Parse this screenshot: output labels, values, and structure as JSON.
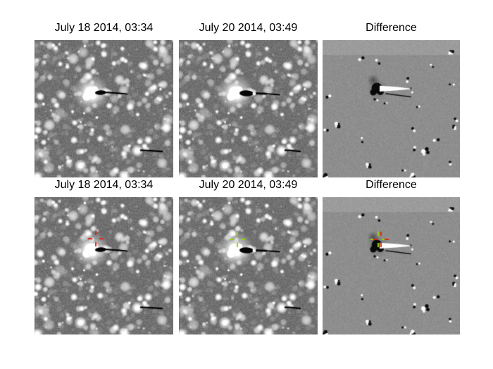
{
  "figure": {
    "type": "astronomy-two-epoch-comparison",
    "background": "#ffffff",
    "columns": [
      "epoch1",
      "epoch2",
      "difference"
    ],
    "rows": [
      {
        "name": "unannotated",
        "panels": [
          {
            "title": "July 18 2014, 03:34",
            "type": "epoch1",
            "markers": []
          },
          {
            "title": "July 20 2014, 03:49",
            "type": "epoch2",
            "markers": []
          },
          {
            "title": "Difference",
            "type": "difference",
            "markers": []
          }
        ]
      },
      {
        "name": "annotated",
        "panels": [
          {
            "title": "July 18 2014, 03:34",
            "type": "epoch1",
            "markers": [
              {
                "name": "target-position-epoch1",
                "color": "#e02518",
                "x": 87,
                "y": 59
              }
            ]
          },
          {
            "title": "July 20 2014, 03:49",
            "type": "epoch2",
            "markers": [
              {
                "name": "target-position-epoch2",
                "color": "#95d40c",
                "x": 83,
                "y": 60
              }
            ]
          },
          {
            "title": "Difference",
            "type": "difference",
            "markers": [
              {
                "name": "target-position-epoch2",
                "color": "#95d40c",
                "x": 79,
                "y": 60
              },
              {
                "name": "target-position-epoch1",
                "color": "#e02518",
                "x": 83,
                "y": 60
              }
            ]
          }
        ]
      }
    ],
    "image_colors": {
      "starfield_background": "#707070",
      "difference_background": "#8e8e8e",
      "difference_top_band": "#9b9b9b",
      "marker_red": "#e02518",
      "marker_green": "#95d40c"
    }
  }
}
